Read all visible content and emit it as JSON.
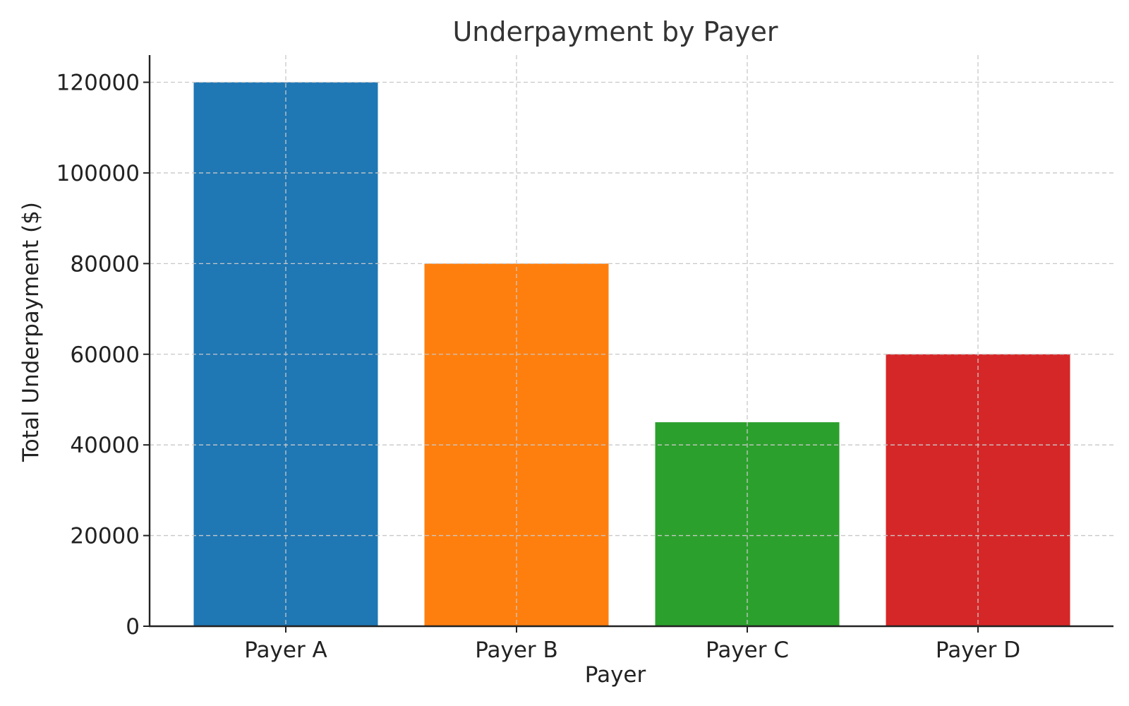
{
  "chart_data": {
    "type": "bar",
    "title": "Underpayment by Payer",
    "xlabel": "Payer",
    "ylabel": "Total Underpayment ($)",
    "categories": [
      "Payer A",
      "Payer B",
      "Payer C",
      "Payer D"
    ],
    "values": [
      120000,
      80000,
      45000,
      60000
    ],
    "colors": [
      "#1f77b4",
      "#ff7f0e",
      "#2ca02c",
      "#d62728"
    ],
    "ylim": [
      0,
      126000
    ],
    "yticks": [
      0,
      20000,
      40000,
      60000,
      80000,
      100000,
      120000
    ],
    "ytick_labels": [
      "0",
      "20000",
      "40000",
      "60000",
      "80000",
      "100000",
      "120000"
    ],
    "grid": true
  }
}
